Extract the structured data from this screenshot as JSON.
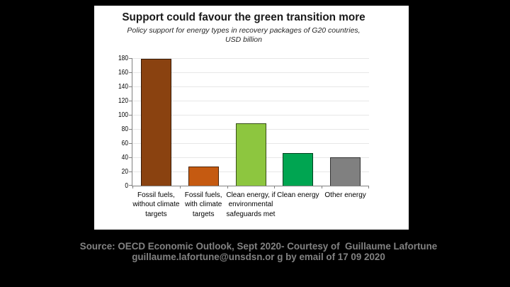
{
  "slide": {
    "background": "#000000"
  },
  "chart_data": {
    "type": "bar",
    "title": "Support could favour the green transition more",
    "subtitle": "Policy support for energy types in recovery packages of G20 countries,\nUSD billion",
    "categories": [
      "Fossil fuels,\nwithout climate\ntargets",
      "Fossil fuels,\nwith climate\ntargets",
      "Clean energy, if\nenvironmental\nsafeguards met",
      "Clean energy",
      "Other energy"
    ],
    "values": [
      179,
      27,
      88,
      46,
      40
    ],
    "bar_colors": [
      "#8A4210",
      "#C55A11",
      "#8DC63F",
      "#00A551",
      "#808080"
    ],
    "xlabel": "",
    "ylabel": "",
    "ylim": [
      0,
      180
    ],
    "ytick_step": 20,
    "grid": true,
    "legend": "none"
  },
  "footer": {
    "line1": "Source: OECD Economic Outlook, Sept 2020- Courtesy of  Guillaume Lafortune",
    "line2": "guillaume.lafortune@unsdsn.or g by email of 17 09 2020"
  }
}
